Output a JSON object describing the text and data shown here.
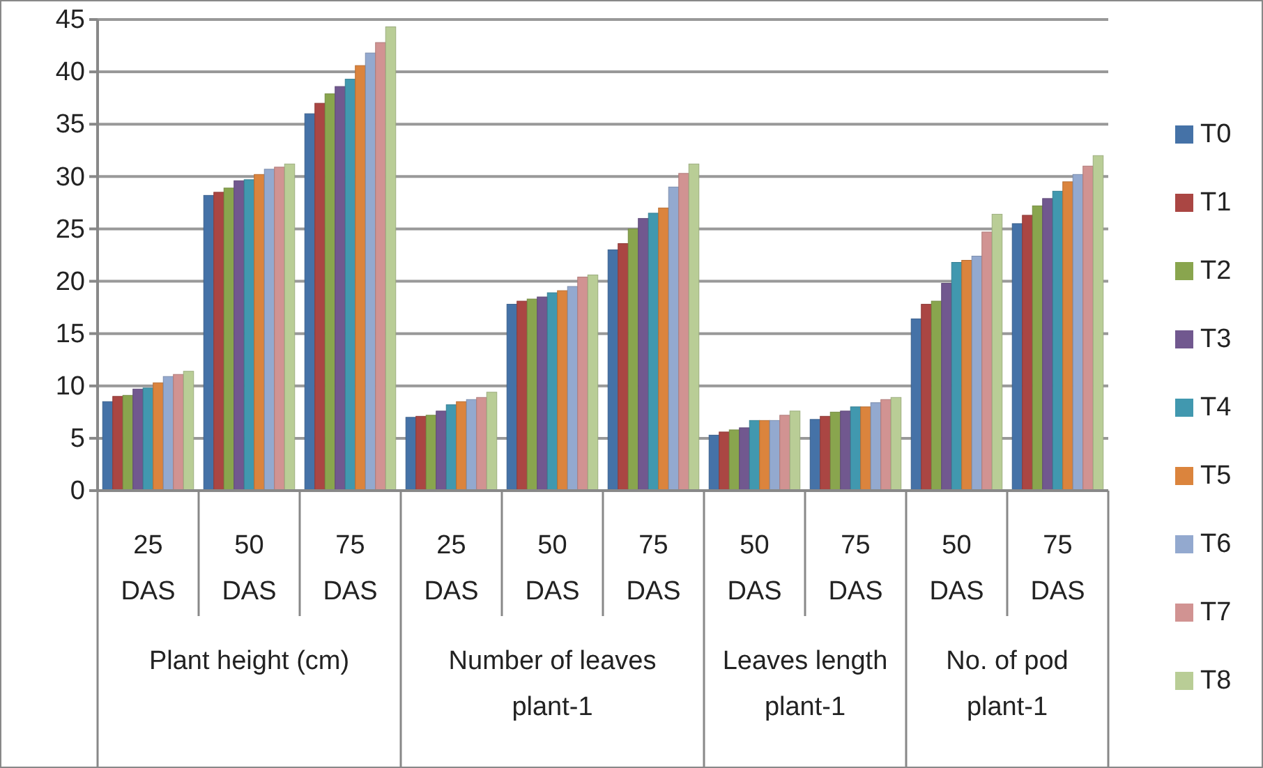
{
  "chart_data": {
    "type": "bar",
    "categories": [
      "25 DAS",
      "50 DAS",
      "75 DAS",
      "25 DAS",
      "50 DAS",
      "75 DAS",
      "50 DAS",
      "75 DAS",
      "50 DAS",
      "75 DAS"
    ],
    "series": [
      {
        "name": "T0",
        "color": "#4572a7",
        "values": [
          8.5,
          28.2,
          36,
          7.0,
          17.8,
          23.0,
          5.3,
          6.8,
          16.4,
          25.5
        ]
      },
      {
        "name": "T1",
        "color": "#aa4643",
        "values": [
          9.0,
          28.5,
          37,
          7.1,
          18.1,
          23.6,
          5.6,
          7.1,
          17.8,
          26.3
        ]
      },
      {
        "name": "T2",
        "color": "#89a54e",
        "values": [
          9.1,
          28.9,
          37.9,
          7.2,
          18.3,
          25.0,
          5.8,
          7.5,
          18.1,
          27.2
        ]
      },
      {
        "name": "T3",
        "color": "#71588f",
        "values": [
          9.7,
          29.6,
          38.6,
          7.6,
          18.5,
          26.0,
          6.0,
          7.6,
          19.8,
          27.9
        ]
      },
      {
        "name": "T4",
        "color": "#4198af",
        "values": [
          9.8,
          29.7,
          39.3,
          8.2,
          18.9,
          26.5,
          6.7,
          8.0,
          21.8,
          28.6
        ]
      },
      {
        "name": "T5",
        "color": "#db843d",
        "values": [
          10.3,
          30.2,
          40.6,
          8.5,
          19.1,
          27.0,
          6.7,
          8.0,
          22.0,
          29.5
        ]
      },
      {
        "name": "T6",
        "color": "#93a9cf",
        "values": [
          10.9,
          30.7,
          41.8,
          8.7,
          19.5,
          29.0,
          6.7,
          8.4,
          22.4,
          30.2
        ]
      },
      {
        "name": "T7",
        "color": "#d19392",
        "values": [
          11.1,
          30.9,
          42.8,
          8.9,
          20.4,
          30.3,
          7.2,
          8.7,
          24.7,
          31.0
        ]
      },
      {
        "name": "T8",
        "color": "#b9cd96",
        "values": [
          11.4,
          31.2,
          44.3,
          9.4,
          20.6,
          31.2,
          7.6,
          8.9,
          26.4,
          32.0
        ]
      }
    ],
    "annotations": [
      "Plant height (cm)",
      "Number of leaves plant-1",
      "Leaves length plant-1",
      "No. of pod plant-1"
    ],
    "ylim": [
      0,
      45
    ],
    "yticks": [
      0,
      5,
      10,
      15,
      20,
      25,
      30,
      35,
      40,
      45
    ],
    "grid": "y",
    "legend": "right"
  }
}
